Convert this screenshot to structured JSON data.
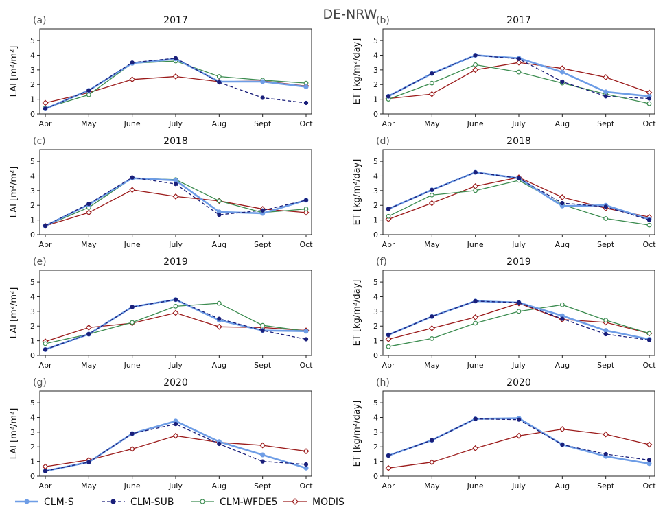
{
  "figure_title": "DE-NRW",
  "months": [
    "Apr",
    "May",
    "June",
    "July",
    "Aug",
    "Sept",
    "Oct"
  ],
  "legend": [
    {
      "name": "CLM-S",
      "color": "#6e9de6",
      "marker": "circle"
    },
    {
      "name": "CLM-SUB",
      "color": "#1a1f7a",
      "marker": "circle"
    },
    {
      "name": "CLM-WFDE5",
      "color": "#3c8c50",
      "marker": "circle"
    },
    {
      "name": "MODIS",
      "color": "#9b1b1b",
      "marker": "diamond"
    }
  ],
  "chart_data": [
    {
      "type": "line",
      "panel": "(a)",
      "title": "2017",
      "ylabel": "LAI [m²/m²]",
      "ylim": [
        0,
        5.8
      ],
      "yticks": [
        0,
        1,
        2,
        3,
        4,
        5
      ],
      "categories": [
        "Apr",
        "May",
        "June",
        "July",
        "Aug",
        "Sept",
        "Oct"
      ],
      "series": [
        {
          "name": "CLM-S",
          "values": [
            0.35,
            1.6,
            3.45,
            3.75,
            2.2,
            2.2,
            1.85
          ]
        },
        {
          "name": "CLM-SUB",
          "values": [
            0.35,
            1.6,
            3.5,
            3.8,
            2.15,
            1.1,
            0.75
          ]
        },
        {
          "name": "CLM-WFDE5",
          "values": [
            0.4,
            1.3,
            3.45,
            3.6,
            2.55,
            2.3,
            2.1
          ]
        },
        {
          "name": "MODIS",
          "values": [
            0.75,
            1.45,
            2.35,
            2.55,
            2.2,
            2.25,
            1.9
          ]
        }
      ]
    },
    {
      "type": "line",
      "panel": "(b)",
      "title": "2017",
      "ylabel": "ET [kg/m²/day]",
      "ylim": [
        0,
        5.8
      ],
      "yticks": [
        0,
        1,
        2,
        3,
        4,
        5
      ],
      "categories": [
        "Apr",
        "May",
        "June",
        "July",
        "Aug",
        "Sept",
        "Oct"
      ],
      "series": [
        {
          "name": "CLM-S",
          "values": [
            1.2,
            2.75,
            4.0,
            3.8,
            2.85,
            1.5,
            1.2
          ]
        },
        {
          "name": "CLM-SUB",
          "values": [
            1.2,
            2.75,
            4.0,
            3.75,
            2.2,
            1.2,
            1.05
          ]
        },
        {
          "name": "CLM-WFDE5",
          "values": [
            1.0,
            2.1,
            3.35,
            2.85,
            2.1,
            1.35,
            0.7
          ]
        },
        {
          "name": "MODIS",
          "values": [
            1.05,
            1.35,
            3.0,
            3.5,
            3.1,
            2.5,
            1.45
          ]
        }
      ]
    },
    {
      "type": "line",
      "panel": "(c)",
      "title": "2018",
      "ylabel": "LAI [m²/m²]",
      "ylim": [
        0,
        5.8
      ],
      "yticks": [
        0,
        1,
        2,
        3,
        4,
        5
      ],
      "categories": [
        "Apr",
        "May",
        "June",
        "July",
        "Aug",
        "Sept",
        "Oct"
      ],
      "series": [
        {
          "name": "CLM-S",
          "values": [
            0.6,
            2.05,
            3.85,
            3.7,
            1.55,
            1.45,
            2.35
          ]
        },
        {
          "name": "CLM-SUB",
          "values": [
            0.6,
            2.1,
            3.9,
            3.45,
            1.35,
            1.65,
            2.35
          ]
        },
        {
          "name": "CLM-WFDE5",
          "values": [
            0.6,
            1.85,
            3.85,
            3.75,
            2.3,
            1.5,
            1.75
          ]
        },
        {
          "name": "MODIS",
          "values": [
            0.6,
            1.5,
            3.05,
            2.6,
            2.3,
            1.75,
            1.5
          ]
        }
      ]
    },
    {
      "type": "line",
      "panel": "(d)",
      "title": "2018",
      "ylabel": "ET [kg/m²/day]",
      "ylim": [
        0,
        5.8
      ],
      "yticks": [
        0,
        1,
        2,
        3,
        4,
        5
      ],
      "categories": [
        "Apr",
        "May",
        "June",
        "July",
        "Aug",
        "Sept",
        "Oct"
      ],
      "series": [
        {
          "name": "CLM-S",
          "values": [
            1.75,
            3.05,
            4.25,
            3.85,
            1.95,
            2.0,
            1.05
          ]
        },
        {
          "name": "CLM-SUB",
          "values": [
            1.75,
            3.05,
            4.25,
            3.85,
            2.15,
            1.9,
            1.0
          ]
        },
        {
          "name": "CLM-WFDE5",
          "values": [
            1.25,
            2.7,
            3.0,
            3.7,
            2.05,
            1.1,
            0.65
          ]
        },
        {
          "name": "MODIS",
          "values": [
            1.05,
            2.15,
            3.3,
            3.9,
            2.55,
            1.8,
            1.2
          ]
        }
      ]
    },
    {
      "type": "line",
      "panel": "(e)",
      "title": "2019",
      "ylabel": "LAI [m²/m²]",
      "ylim": [
        0,
        5.8
      ],
      "yticks": [
        0,
        1,
        2,
        3,
        4,
        5
      ],
      "categories": [
        "Apr",
        "May",
        "June",
        "July",
        "Aug",
        "Sept",
        "Oct"
      ],
      "series": [
        {
          "name": "CLM-S",
          "values": [
            0.4,
            1.45,
            3.3,
            3.8,
            2.4,
            1.7,
            1.65
          ]
        },
        {
          "name": "CLM-SUB",
          "values": [
            0.4,
            1.45,
            3.3,
            3.8,
            2.5,
            1.7,
            1.1
          ]
        },
        {
          "name": "CLM-WFDE5",
          "values": [
            0.8,
            1.45,
            2.25,
            3.35,
            3.55,
            2.05,
            1.65
          ]
        },
        {
          "name": "MODIS",
          "values": [
            0.95,
            1.9,
            2.2,
            2.9,
            1.95,
            1.9,
            1.7
          ]
        }
      ]
    },
    {
      "type": "line",
      "panel": "(f)",
      "title": "2019",
      "ylabel": "ET [kg/m²/day]",
      "ylim": [
        0,
        5.8
      ],
      "yticks": [
        0,
        1,
        2,
        3,
        4,
        5
      ],
      "categories": [
        "Apr",
        "May",
        "June",
        "July",
        "Aug",
        "Sept",
        "Oct"
      ],
      "series": [
        {
          "name": "CLM-S",
          "values": [
            1.4,
            2.65,
            3.7,
            3.6,
            2.7,
            1.7,
            1.1
          ]
        },
        {
          "name": "CLM-SUB",
          "values": [
            1.4,
            2.65,
            3.7,
            3.6,
            2.5,
            1.45,
            1.05
          ]
        },
        {
          "name": "CLM-WFDE5",
          "values": [
            0.6,
            1.15,
            2.2,
            3.0,
            3.45,
            2.4,
            1.5
          ]
        },
        {
          "name": "MODIS",
          "values": [
            1.1,
            1.85,
            2.6,
            3.55,
            2.45,
            2.25,
            1.5
          ]
        }
      ]
    },
    {
      "type": "line",
      "panel": "(g)",
      "title": "2020",
      "ylabel": "LAI [m²/m²]",
      "ylim": [
        0,
        5.8
      ],
      "yticks": [
        0,
        1,
        2,
        3,
        4,
        5
      ],
      "categories": [
        "Apr",
        "May",
        "June",
        "July",
        "Aug",
        "Sept",
        "Oct"
      ],
      "series": [
        {
          "name": "CLM-S",
          "values": [
            0.35,
            0.95,
            2.9,
            3.75,
            2.35,
            1.45,
            0.55
          ]
        },
        {
          "name": "CLM-SUB",
          "values": [
            0.35,
            0.95,
            2.9,
            3.55,
            2.2,
            1.0,
            0.8
          ]
        },
        {
          "name": "MODIS",
          "values": [
            0.65,
            1.1,
            1.85,
            2.75,
            2.3,
            2.1,
            1.7
          ]
        }
      ]
    },
    {
      "type": "line",
      "panel": "(h)",
      "title": "2020",
      "ylabel": "ET [kg/m²/day]",
      "ylim": [
        0,
        5.8
      ],
      "yticks": [
        0,
        1,
        2,
        3,
        4,
        5
      ],
      "categories": [
        "Apr",
        "May",
        "June",
        "July",
        "Aug",
        "Sept",
        "Oct"
      ],
      "series": [
        {
          "name": "CLM-S",
          "values": [
            1.4,
            2.45,
            3.9,
            3.95,
            2.15,
            1.35,
            0.85
          ]
        },
        {
          "name": "CLM-SUB",
          "values": [
            1.4,
            2.45,
            3.9,
            3.85,
            2.15,
            1.5,
            1.1
          ]
        },
        {
          "name": "MODIS",
          "values": [
            0.55,
            0.95,
            1.9,
            2.75,
            3.2,
            2.85,
            2.15
          ]
        }
      ]
    }
  ]
}
